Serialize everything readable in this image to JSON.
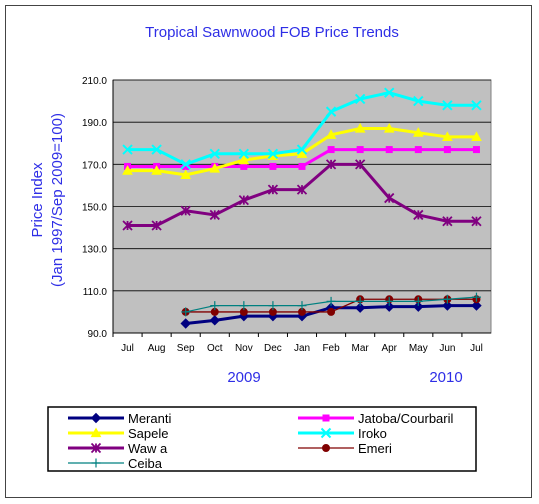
{
  "chart_data": {
    "type": "line",
    "title": "Tropical Sawnwood FOB Price Trends",
    "ylabel": "Price Index\n(Jan 1997/Sep 2009=100)",
    "xlabel": "",
    "year_labels": [
      "2009",
      "2010"
    ],
    "categories": [
      "Jul",
      "Aug",
      "Sep",
      "Oct",
      "Nov",
      "Dec",
      "Jan",
      "Feb",
      "Mar",
      "Apr",
      "May",
      "Jun",
      "Jul"
    ],
    "ylim": [
      90,
      210
    ],
    "yticks": [
      "90.0",
      "110.0",
      "130.0",
      "150.0",
      "170.0",
      "190.0",
      "210.0"
    ],
    "grid": true,
    "legend_position": "bottom",
    "plot_background": "#c0c0c0",
    "series": [
      {
        "name": "Meranti",
        "color": "#000080",
        "marker": "diamond",
        "values": [
          null,
          null,
          94.5,
          96,
          98,
          98,
          98,
          102,
          102,
          102.5,
          102.5,
          103,
          103
        ]
      },
      {
        "name": "Jatoba/Courbaril",
        "color": "#ff00ff",
        "marker": "square",
        "values": [
          169,
          169,
          169,
          169,
          169,
          169,
          169,
          177,
          177,
          177,
          177,
          177,
          177
        ]
      },
      {
        "name": "Sapele",
        "color": "#ffff00",
        "marker": "triangle",
        "values": [
          167,
          167,
          165,
          168,
          172,
          174,
          175,
          184,
          187,
          187,
          185,
          183,
          183
        ]
      },
      {
        "name": "Iroko",
        "color": "#00ffff",
        "marker": "x",
        "values": [
          177,
          177,
          170,
          175,
          175,
          175,
          177,
          195,
          201,
          204,
          200,
          198,
          198
        ]
      },
      {
        "name": "Waw a",
        "color": "#800080",
        "marker": "star",
        "values": [
          141,
          141,
          148,
          146,
          153,
          158,
          158,
          170,
          170,
          154,
          146,
          143,
          143
        ]
      },
      {
        "name": "Emeri",
        "color": "#800000",
        "marker": "circle",
        "values": [
          null,
          null,
          100,
          100,
          100,
          100,
          100,
          100,
          106,
          106,
          106,
          106,
          106
        ]
      },
      {
        "name": "Ceiba",
        "color": "#008080",
        "marker": "plus",
        "values": [
          null,
          null,
          100,
          103,
          103,
          103,
          103,
          105,
          105,
          105,
          105,
          106,
          107
        ]
      }
    ]
  }
}
